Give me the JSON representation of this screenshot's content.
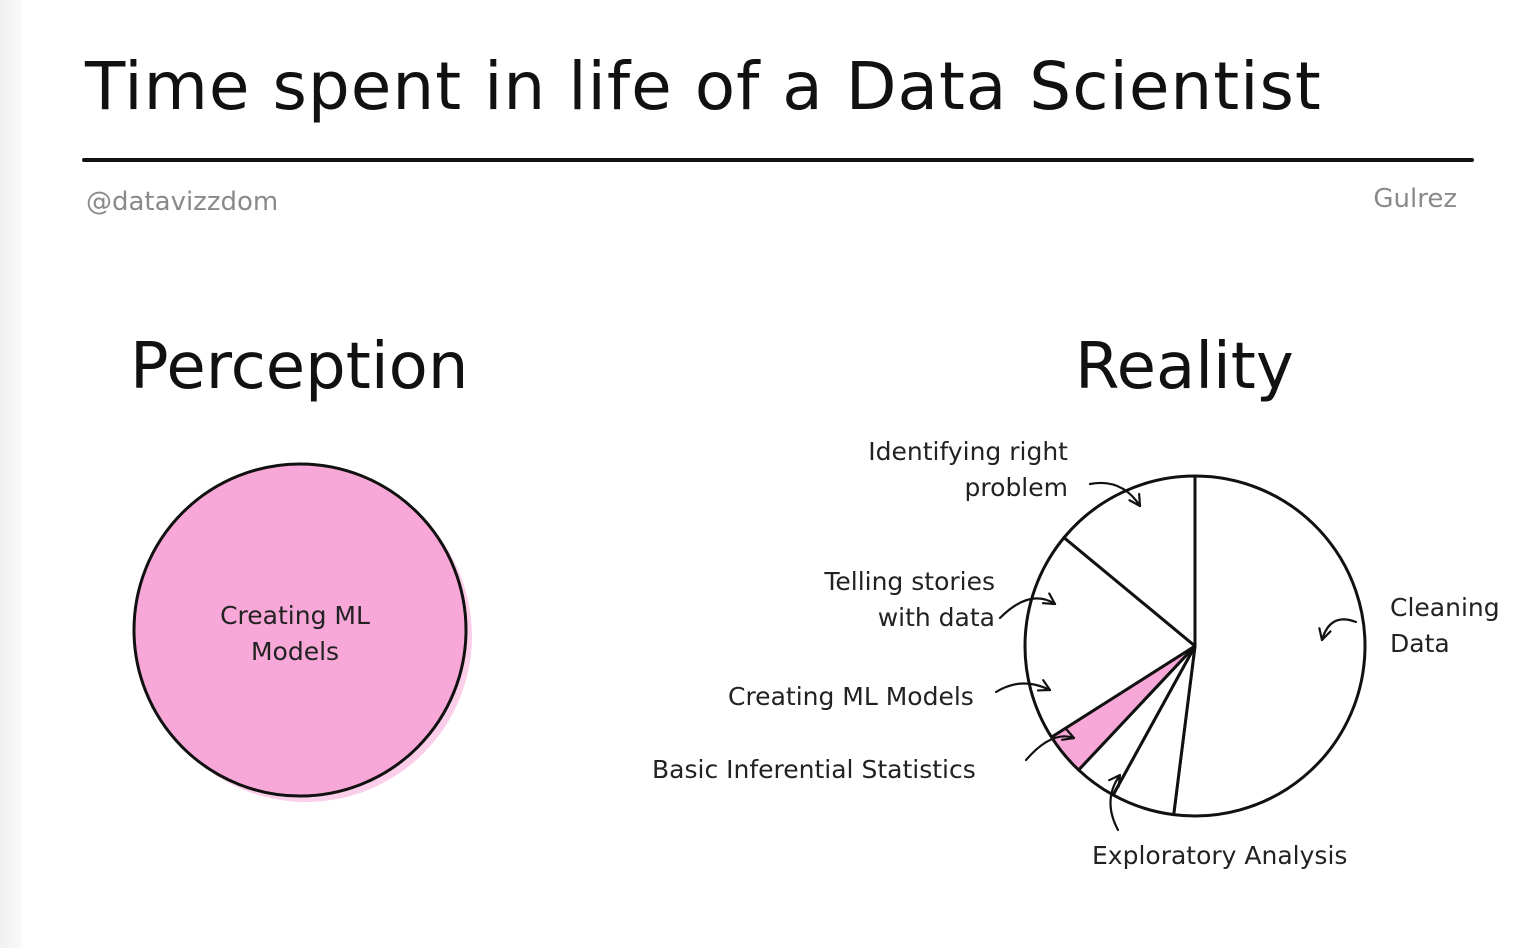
{
  "title": "Time spent in life of a Data Scientist",
  "credits": {
    "handle": "@datavizzdom",
    "author": "Gulrez"
  },
  "colors": {
    "highlight": "#f8a8d8",
    "ink": "#111111",
    "muted": "#8a8a8a"
  },
  "chart_data": [
    {
      "type": "pie",
      "title": "Perception",
      "slices": [
        {
          "label": "Creating ML Models",
          "label_lines": [
            "Creating ML",
            "Models"
          ],
          "value": 100,
          "highlight": true
        }
      ]
    },
    {
      "type": "pie",
      "title": "Reality",
      "slices": [
        {
          "label": "Cleaning Data",
          "label_lines": [
            "Cleaning",
            "Data"
          ],
          "value": 52,
          "highlight": false
        },
        {
          "label": "Exploratory Analysis",
          "label_lines": [
            "Exploratory Analysis"
          ],
          "value": 6,
          "highlight": false
        },
        {
          "label": "Basic Inferential Statistics",
          "label_lines": [
            "Basic Inferential Statistics"
          ],
          "value": 4,
          "highlight": false
        },
        {
          "label": "Creating ML Models",
          "label_lines": [
            "Creating ML Models"
          ],
          "value": 4,
          "highlight": true
        },
        {
          "label": "Telling stories with data",
          "label_lines": [
            "Telling stories",
            "with data"
          ],
          "value": 20,
          "highlight": false
        },
        {
          "label": "Identifying right problem",
          "label_lines": [
            "Identifying right",
            "problem"
          ],
          "value": 14,
          "highlight": false
        }
      ]
    }
  ]
}
